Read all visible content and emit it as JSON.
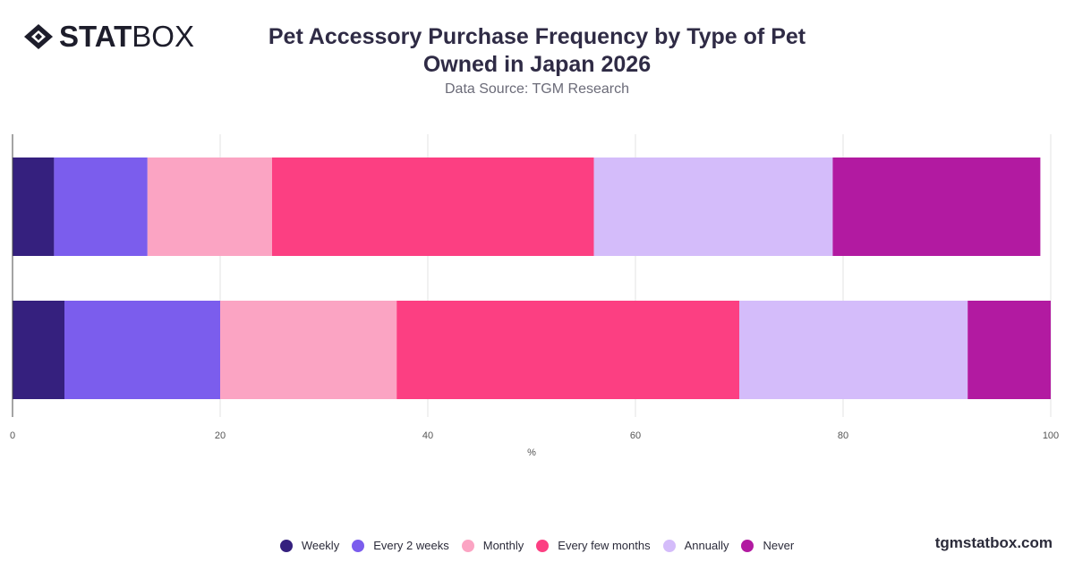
{
  "brand": {
    "logo_bold": "STAT",
    "logo_thin": "BOX",
    "footer": "tgmstatbox.com"
  },
  "title_line1": "Pet Accessory Purchase Frequency by Type of Pet",
  "title_line2": "Owned in Japan 2026",
  "subtitle": "Data Source: TGM Research",
  "chart_data": {
    "type": "bar",
    "orientation": "horizontal",
    "stacked": true,
    "categories": [
      "",
      ""
    ],
    "xlabel": "%",
    "xlim": [
      0,
      100
    ],
    "xticks": [
      0,
      20,
      40,
      60,
      80,
      100
    ],
    "grid": true,
    "legend_position": "bottom",
    "series": [
      {
        "name": "Weekly",
        "color": "#35207e",
        "values": [
          4,
          5
        ]
      },
      {
        "name": "Every 2 weeks",
        "color": "#7b5ded",
        "values": [
          9,
          15
        ]
      },
      {
        "name": "Monthly",
        "color": "#fba4c3",
        "values": [
          12,
          17
        ]
      },
      {
        "name": "Every few months",
        "color": "#fc3f82",
        "values": [
          31,
          33
        ]
      },
      {
        "name": "Annually",
        "color": "#d4bcfa",
        "values": [
          23,
          22
        ]
      },
      {
        "name": "Never",
        "color": "#b21aa1",
        "values": [
          20,
          8
        ]
      }
    ]
  }
}
